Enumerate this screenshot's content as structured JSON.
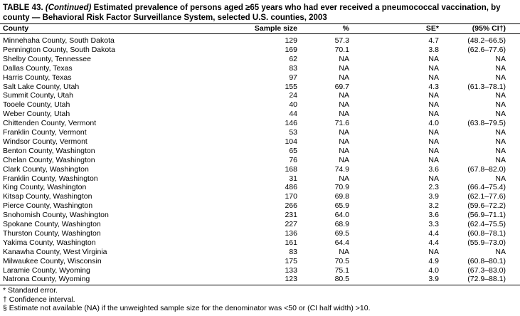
{
  "header": {
    "number": "TABLE 43.",
    "continued": "(Continued)",
    "title": "Estimated prevalence of persons aged ≥65 years who had ever received a pneumococcal vaccination, by county — Behavioral Risk Factor Surveillance System, selected U.S. counties, 2003"
  },
  "table": {
    "columns": [
      "County",
      "Sample size",
      "%",
      "SE*",
      "(95% CI†)"
    ],
    "rows": [
      [
        "Minnehaha County, South Dakota",
        "129",
        "57.3",
        "4.7",
        "(48.2–66.5)"
      ],
      [
        "Pennington County, South Dakota",
        "169",
        "70.1",
        "3.8",
        "(62.6–77.6)"
      ],
      [
        "Shelby County, Tennessee",
        "62",
        "NA",
        "NA",
        "NA"
      ],
      [
        "Dallas County, Texas",
        "83",
        "NA",
        "NA",
        "NA"
      ],
      [
        "Harris County, Texas",
        "97",
        "NA",
        "NA",
        "NA"
      ],
      [
        "Salt Lake County, Utah",
        "155",
        "69.7",
        "4.3",
        "(61.3–78.1)"
      ],
      [
        "Summit County, Utah",
        "24",
        "NA",
        "NA",
        "NA"
      ],
      [
        "Tooele County, Utah",
        "40",
        "NA",
        "NA",
        "NA"
      ],
      [
        "Weber County, Utah",
        "44",
        "NA",
        "NA",
        "NA"
      ],
      [
        "Chittenden County, Vermont",
        "146",
        "71.6",
        "4.0",
        "(63.8–79.5)"
      ],
      [
        "Franklin County, Vermont",
        "53",
        "NA",
        "NA",
        "NA"
      ],
      [
        "Windsor County, Vermont",
        "104",
        "NA",
        "NA",
        "NA"
      ],
      [
        "Benton County, Washington",
        "65",
        "NA",
        "NA",
        "NA"
      ],
      [
        "Chelan County, Washington",
        "76",
        "NA",
        "NA",
        "NA"
      ],
      [
        "Clark County, Washington",
        "168",
        "74.9",
        "3.6",
        "(67.8–82.0)"
      ],
      [
        "Franklin County, Washington",
        "31",
        "NA",
        "NA",
        "NA"
      ],
      [
        "King County, Washington",
        "486",
        "70.9",
        "2.3",
        "(66.4–75.4)"
      ],
      [
        "Kitsap County, Washington",
        "170",
        "69.8",
        "3.9",
        "(62.1–77.6)"
      ],
      [
        "Pierce County, Washington",
        "266",
        "65.9",
        "3.2",
        "(59.6–72.2)"
      ],
      [
        "Snohomish County, Washington",
        "231",
        "64.0",
        "3.6",
        "(56.9–71.1)"
      ],
      [
        "Spokane County, Washington",
        "227",
        "68.9",
        "3.3",
        "(62.4–75.5)"
      ],
      [
        "Thurston County, Washington",
        "136",
        "69.5",
        "4.4",
        "(60.8–78.1)"
      ],
      [
        "Yakima County, Washington",
        "161",
        "64.4",
        "4.4",
        "(55.9–73.0)"
      ],
      [
        "Kanawha County, West Virginia",
        "83",
        "NA",
        "NA",
        "NA"
      ],
      [
        "Milwaukee County, Wisconsin",
        "175",
        "70.5",
        "4.9",
        "(60.8–80.1)"
      ],
      [
        "Laramie County, Wyoming",
        "133",
        "75.1",
        "4.0",
        "(67.3–83.0)"
      ],
      [
        "Natrona County, Wyoming",
        "123",
        "80.5",
        "3.9",
        "(72.9–88.1)"
      ]
    ]
  },
  "footnotes": [
    "* Standard error.",
    "† Confidence interval.",
    "§ Estimate not available (NA) if the unweighted sample size for the denominator was <50 or (CI half width) >10."
  ]
}
